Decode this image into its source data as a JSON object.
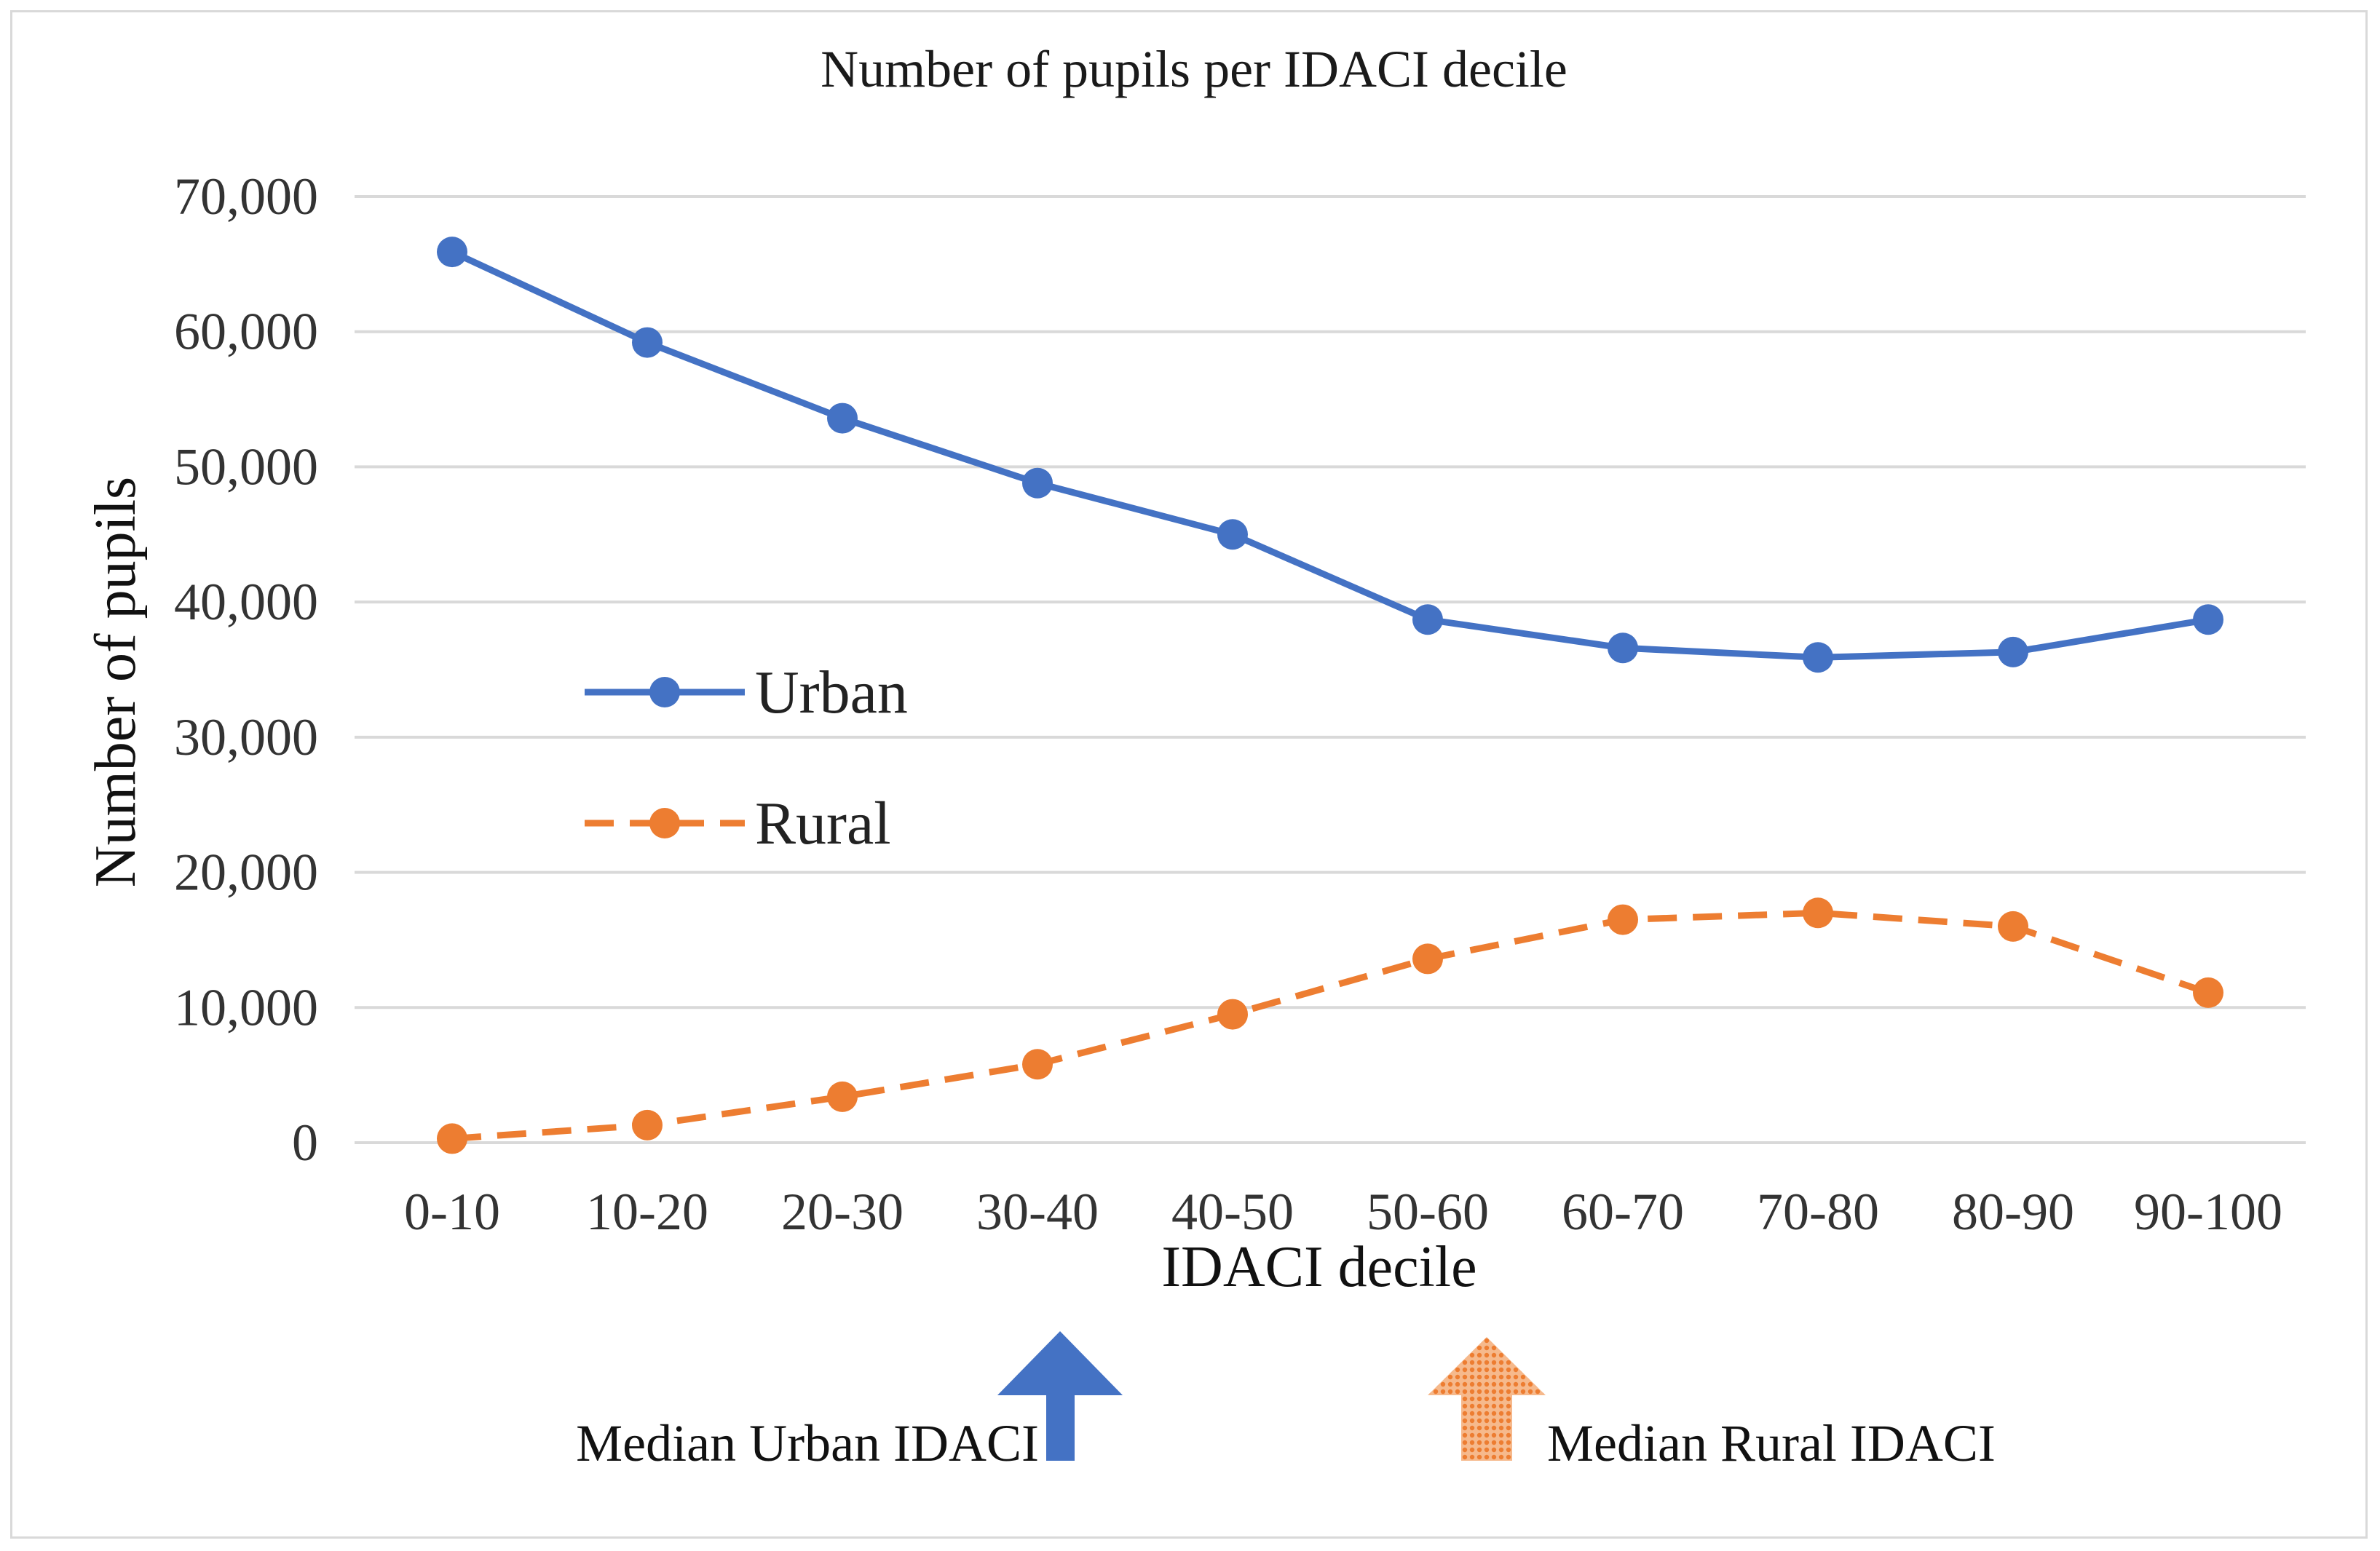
{
  "chart_data": {
    "type": "line",
    "title": "Number of pupils per IDACI decile",
    "xlabel": "IDACI decile",
    "ylabel": "Number of pupils",
    "categories": [
      "0-10",
      "10-20",
      "20-30",
      "30-40",
      "40-50",
      "50-60",
      "60-70",
      "70-80",
      "80-90",
      "90-100"
    ],
    "ylim": [
      0,
      70000
    ],
    "yticks": [
      0,
      10000,
      20000,
      30000,
      40000,
      50000,
      60000,
      70000
    ],
    "ytick_labels": [
      "0",
      "10,000",
      "20,000",
      "30,000",
      "40,000",
      "50,000",
      "60,000",
      "70,000"
    ],
    "grid": true,
    "legend_position": "center-left",
    "series": [
      {
        "name": "Urban",
        "style": "solid",
        "color": "#4472C4",
        "values": [
          65900,
          59200,
          53600,
          48800,
          45000,
          38700,
          36600,
          35900,
          36300,
          38700
        ]
      },
      {
        "name": "Rural",
        "style": "dashed",
        "color": "#ED7D31",
        "values": [
          300,
          1300,
          3400,
          5800,
          9500,
          13600,
          16500,
          17000,
          16000,
          11100
        ]
      }
    ],
    "annotations": [
      {
        "text": "Median Urban IDACI",
        "marker": "up-arrow",
        "color": "#4472C4",
        "category_position": "between 30-40 and 40-50"
      },
      {
        "text": "Median Rural IDACI",
        "marker": "up-arrow-dotted",
        "color": "#ED7D31",
        "category_position": "near 50-60"
      }
    ]
  }
}
